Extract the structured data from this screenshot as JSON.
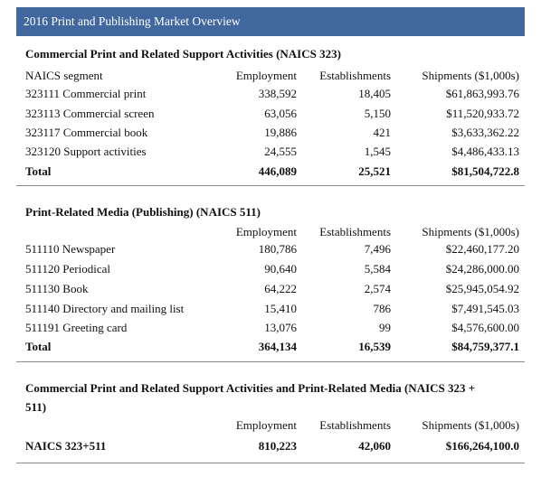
{
  "title": "2016 Print and Publishing Market Overview",
  "sections": [
    {
      "heading": "Commercial Print and Related Support Activities (NAICS 323)",
      "segment_header": "NAICS segment",
      "columns": [
        "Employment",
        "Establishments",
        "Shipments ($1,000s)"
      ],
      "rows": [
        [
          "323111 Commercial print",
          "338,592",
          "18,405",
          "$61,863,993.76"
        ],
        [
          "323113 Commercial screen",
          "63,056",
          "5,150",
          "$11,520,933.72"
        ],
        [
          "323117 Commercial book",
          "19,886",
          "421",
          "$3,633,362.22"
        ],
        [
          "323120 Support activities",
          "24,555",
          "1,545",
          "$4,486,433.13"
        ]
      ],
      "total": [
        "Total",
        "446,089",
        "25,521",
        "$81,504,722.8"
      ]
    },
    {
      "heading": "Print-Related Media (Publishing) (NAICS 511)",
      "columns": [
        "Employment",
        "Establishments",
        "Shipments ($1,000s)"
      ],
      "rows": [
        [
          "511110 Newspaper",
          "180,786",
          "7,496",
          "$22,460,177.20"
        ],
        [
          "511120 Periodical",
          "90,640",
          "5,584",
          "$24,286,000.00"
        ],
        [
          "511130 Book",
          "64,222",
          "2,574",
          "$25,945,054.92"
        ],
        [
          "511140 Directory and mailing list",
          "15,410",
          "786",
          "$7,491,545.03"
        ],
        [
          "511191 Greeting card",
          "13,076",
          "99",
          "$4,576,600.00"
        ]
      ],
      "total": [
        "Total",
        "364,134",
        "16,539",
        "$84,759,377.1"
      ]
    },
    {
      "heading": "Commercial Print and Related Support Activities and Print-Related Media (NAICS 323 + 511)",
      "columns": [
        "Employment",
        "Establishments",
        "Shipments ($1,000s)"
      ],
      "rows": [],
      "total": [
        "NAICS 323+511",
        "810,223",
        "42,060",
        "$166,264,100.0"
      ]
    }
  ]
}
